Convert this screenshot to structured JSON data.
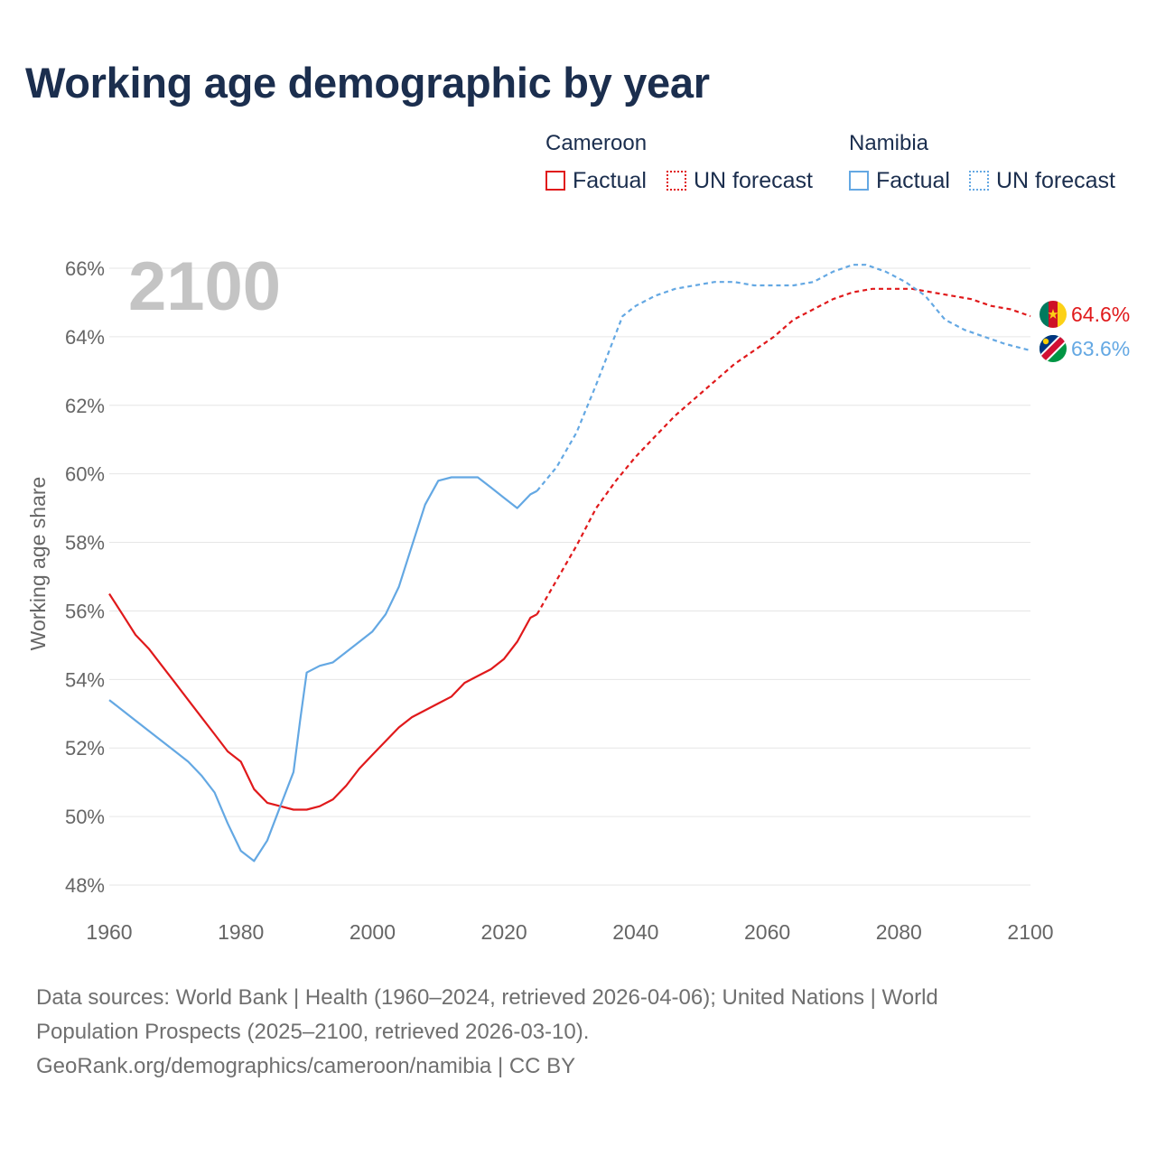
{
  "title": "Working age demographic by year",
  "legend": {
    "groups": [
      {
        "country": "Cameroon",
        "factual_label": "Factual",
        "forecast_label": "UN forecast",
        "color": "#e0191b"
      },
      {
        "country": "Namibia",
        "factual_label": "Factual",
        "forecast_label": "UN forecast",
        "color": "#64a8e3"
      }
    ]
  },
  "footer": {
    "line1": "Data sources: World Bank | Health (1960–2024, retrieved 2026-04-06); United Nations | World",
    "line2": "Population Prospects (2025–2100, retrieved 2026-03-10).",
    "line3": "GeoRank.org/demographics/cameroon/namibia | CC BY"
  },
  "chart_data": {
    "type": "line",
    "title": "Working age demographic by year",
    "xlabel": "",
    "ylabel": "Working age share",
    "xlim": [
      1960,
      2100
    ],
    "ylim": [
      48,
      66
    ],
    "x_ticks": [
      1960,
      1980,
      2000,
      2020,
      2040,
      2060,
      2080,
      2100
    ],
    "y_ticks": [
      48,
      50,
      52,
      54,
      56,
      58,
      60,
      62,
      64,
      66
    ],
    "y_tick_suffix": "%",
    "grid": true,
    "current_year": "2100",
    "forecast_start": 2025,
    "series": [
      {
        "name": "Cameroon",
        "color": "#e0191b",
        "end_label": "64.6%",
        "flag": "cameroon",
        "points": [
          [
            1960,
            56.5
          ],
          [
            1962,
            55.9
          ],
          [
            1964,
            55.3
          ],
          [
            1966,
            54.9
          ],
          [
            1968,
            54.4
          ],
          [
            1970,
            53.9
          ],
          [
            1972,
            53.4
          ],
          [
            1974,
            52.9
          ],
          [
            1976,
            52.4
          ],
          [
            1978,
            51.9
          ],
          [
            1980,
            51.6
          ],
          [
            1982,
            50.8
          ],
          [
            1984,
            50.4
          ],
          [
            1986,
            50.3
          ],
          [
            1988,
            50.2
          ],
          [
            1990,
            50.2
          ],
          [
            1992,
            50.3
          ],
          [
            1994,
            50.5
          ],
          [
            1996,
            50.9
          ],
          [
            1998,
            51.4
          ],
          [
            2000,
            51.8
          ],
          [
            2002,
            52.2
          ],
          [
            2004,
            52.6
          ],
          [
            2006,
            52.9
          ],
          [
            2008,
            53.1
          ],
          [
            2010,
            53.3
          ],
          [
            2012,
            53.5
          ],
          [
            2014,
            53.9
          ],
          [
            2016,
            54.1
          ],
          [
            2018,
            54.3
          ],
          [
            2020,
            54.6
          ],
          [
            2022,
            55.1
          ],
          [
            2024,
            55.8
          ],
          [
            2025,
            55.9
          ],
          [
            2028,
            56.9
          ],
          [
            2031,
            57.9
          ],
          [
            2034,
            59.0
          ],
          [
            2037,
            59.8
          ],
          [
            2040,
            60.5
          ],
          [
            2043,
            61.1
          ],
          [
            2046,
            61.7
          ],
          [
            2049,
            62.2
          ],
          [
            2052,
            62.7
          ],
          [
            2055,
            63.2
          ],
          [
            2058,
            63.6
          ],
          [
            2061,
            64.0
          ],
          [
            2064,
            64.5
          ],
          [
            2067,
            64.8
          ],
          [
            2070,
            65.1
          ],
          [
            2073,
            65.3
          ],
          [
            2076,
            65.4
          ],
          [
            2079,
            65.4
          ],
          [
            2082,
            65.4
          ],
          [
            2085,
            65.3
          ],
          [
            2088,
            65.2
          ],
          [
            2091,
            65.1
          ],
          [
            2094,
            64.9
          ],
          [
            2097,
            64.8
          ],
          [
            2100,
            64.6
          ]
        ]
      },
      {
        "name": "Namibia",
        "color": "#64a8e3",
        "end_label": "63.6%",
        "flag": "namibia",
        "points": [
          [
            1960,
            53.4
          ],
          [
            1962,
            53.1
          ],
          [
            1964,
            52.8
          ],
          [
            1966,
            52.5
          ],
          [
            1968,
            52.2
          ],
          [
            1970,
            51.9
          ],
          [
            1972,
            51.6
          ],
          [
            1974,
            51.2
          ],
          [
            1976,
            50.7
          ],
          [
            1978,
            49.8
          ],
          [
            1980,
            49.0
          ],
          [
            1982,
            48.7
          ],
          [
            1984,
            49.3
          ],
          [
            1986,
            50.3
          ],
          [
            1988,
            51.3
          ],
          [
            1989,
            52.8
          ],
          [
            1990,
            54.2
          ],
          [
            1992,
            54.4
          ],
          [
            1994,
            54.5
          ],
          [
            1996,
            54.8
          ],
          [
            1998,
            55.1
          ],
          [
            2000,
            55.4
          ],
          [
            2002,
            55.9
          ],
          [
            2004,
            56.7
          ],
          [
            2006,
            57.9
          ],
          [
            2008,
            59.1
          ],
          [
            2010,
            59.8
          ],
          [
            2012,
            59.9
          ],
          [
            2014,
            59.9
          ],
          [
            2016,
            59.9
          ],
          [
            2018,
            59.6
          ],
          [
            2020,
            59.3
          ],
          [
            2022,
            59.0
          ],
          [
            2024,
            59.4
          ],
          [
            2025,
            59.5
          ],
          [
            2028,
            60.2
          ],
          [
            2031,
            61.2
          ],
          [
            2034,
            62.6
          ],
          [
            2036,
            63.6
          ],
          [
            2038,
            64.6
          ],
          [
            2040,
            64.9
          ],
          [
            2043,
            65.2
          ],
          [
            2046,
            65.4
          ],
          [
            2049,
            65.5
          ],
          [
            2052,
            65.6
          ],
          [
            2055,
            65.6
          ],
          [
            2058,
            65.5
          ],
          [
            2061,
            65.5
          ],
          [
            2064,
            65.5
          ],
          [
            2067,
            65.6
          ],
          [
            2070,
            65.9
          ],
          [
            2073,
            66.1
          ],
          [
            2075,
            66.1
          ],
          [
            2078,
            65.9
          ],
          [
            2081,
            65.6
          ],
          [
            2084,
            65.2
          ],
          [
            2087,
            64.5
          ],
          [
            2090,
            64.2
          ],
          [
            2093,
            64.0
          ],
          [
            2096,
            63.8
          ],
          [
            2100,
            63.6
          ]
        ]
      }
    ]
  }
}
